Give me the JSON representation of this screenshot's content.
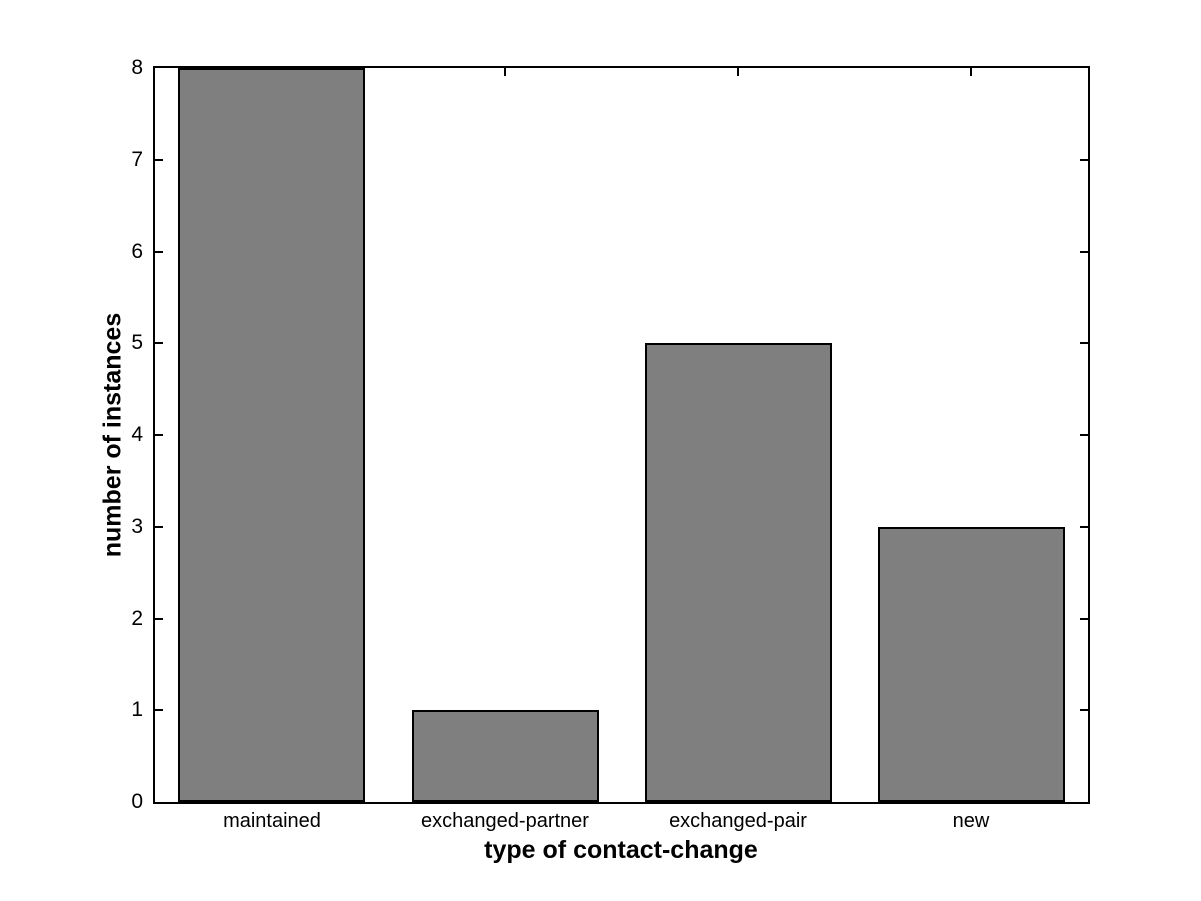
{
  "chart_data": {
    "type": "bar",
    "categories": [
      "maintained",
      "exchanged-partner",
      "exchanged-pair",
      "new"
    ],
    "values": [
      8,
      1,
      5,
      3
    ],
    "title": "",
    "xlabel": "type of contact-change",
    "ylabel": "number of instances",
    "ylim": [
      0,
      8
    ],
    "yticks": [
      0,
      1,
      2,
      3,
      4,
      5,
      6,
      7,
      8
    ],
    "bar_width_fraction": 0.8,
    "bar_color": "#7f7f7f",
    "bar_edge_color": "#000000",
    "axis_color": "#000000",
    "background_color": "#ffffff",
    "grid": false,
    "legend_position": "none",
    "tick_direction": "in"
  }
}
